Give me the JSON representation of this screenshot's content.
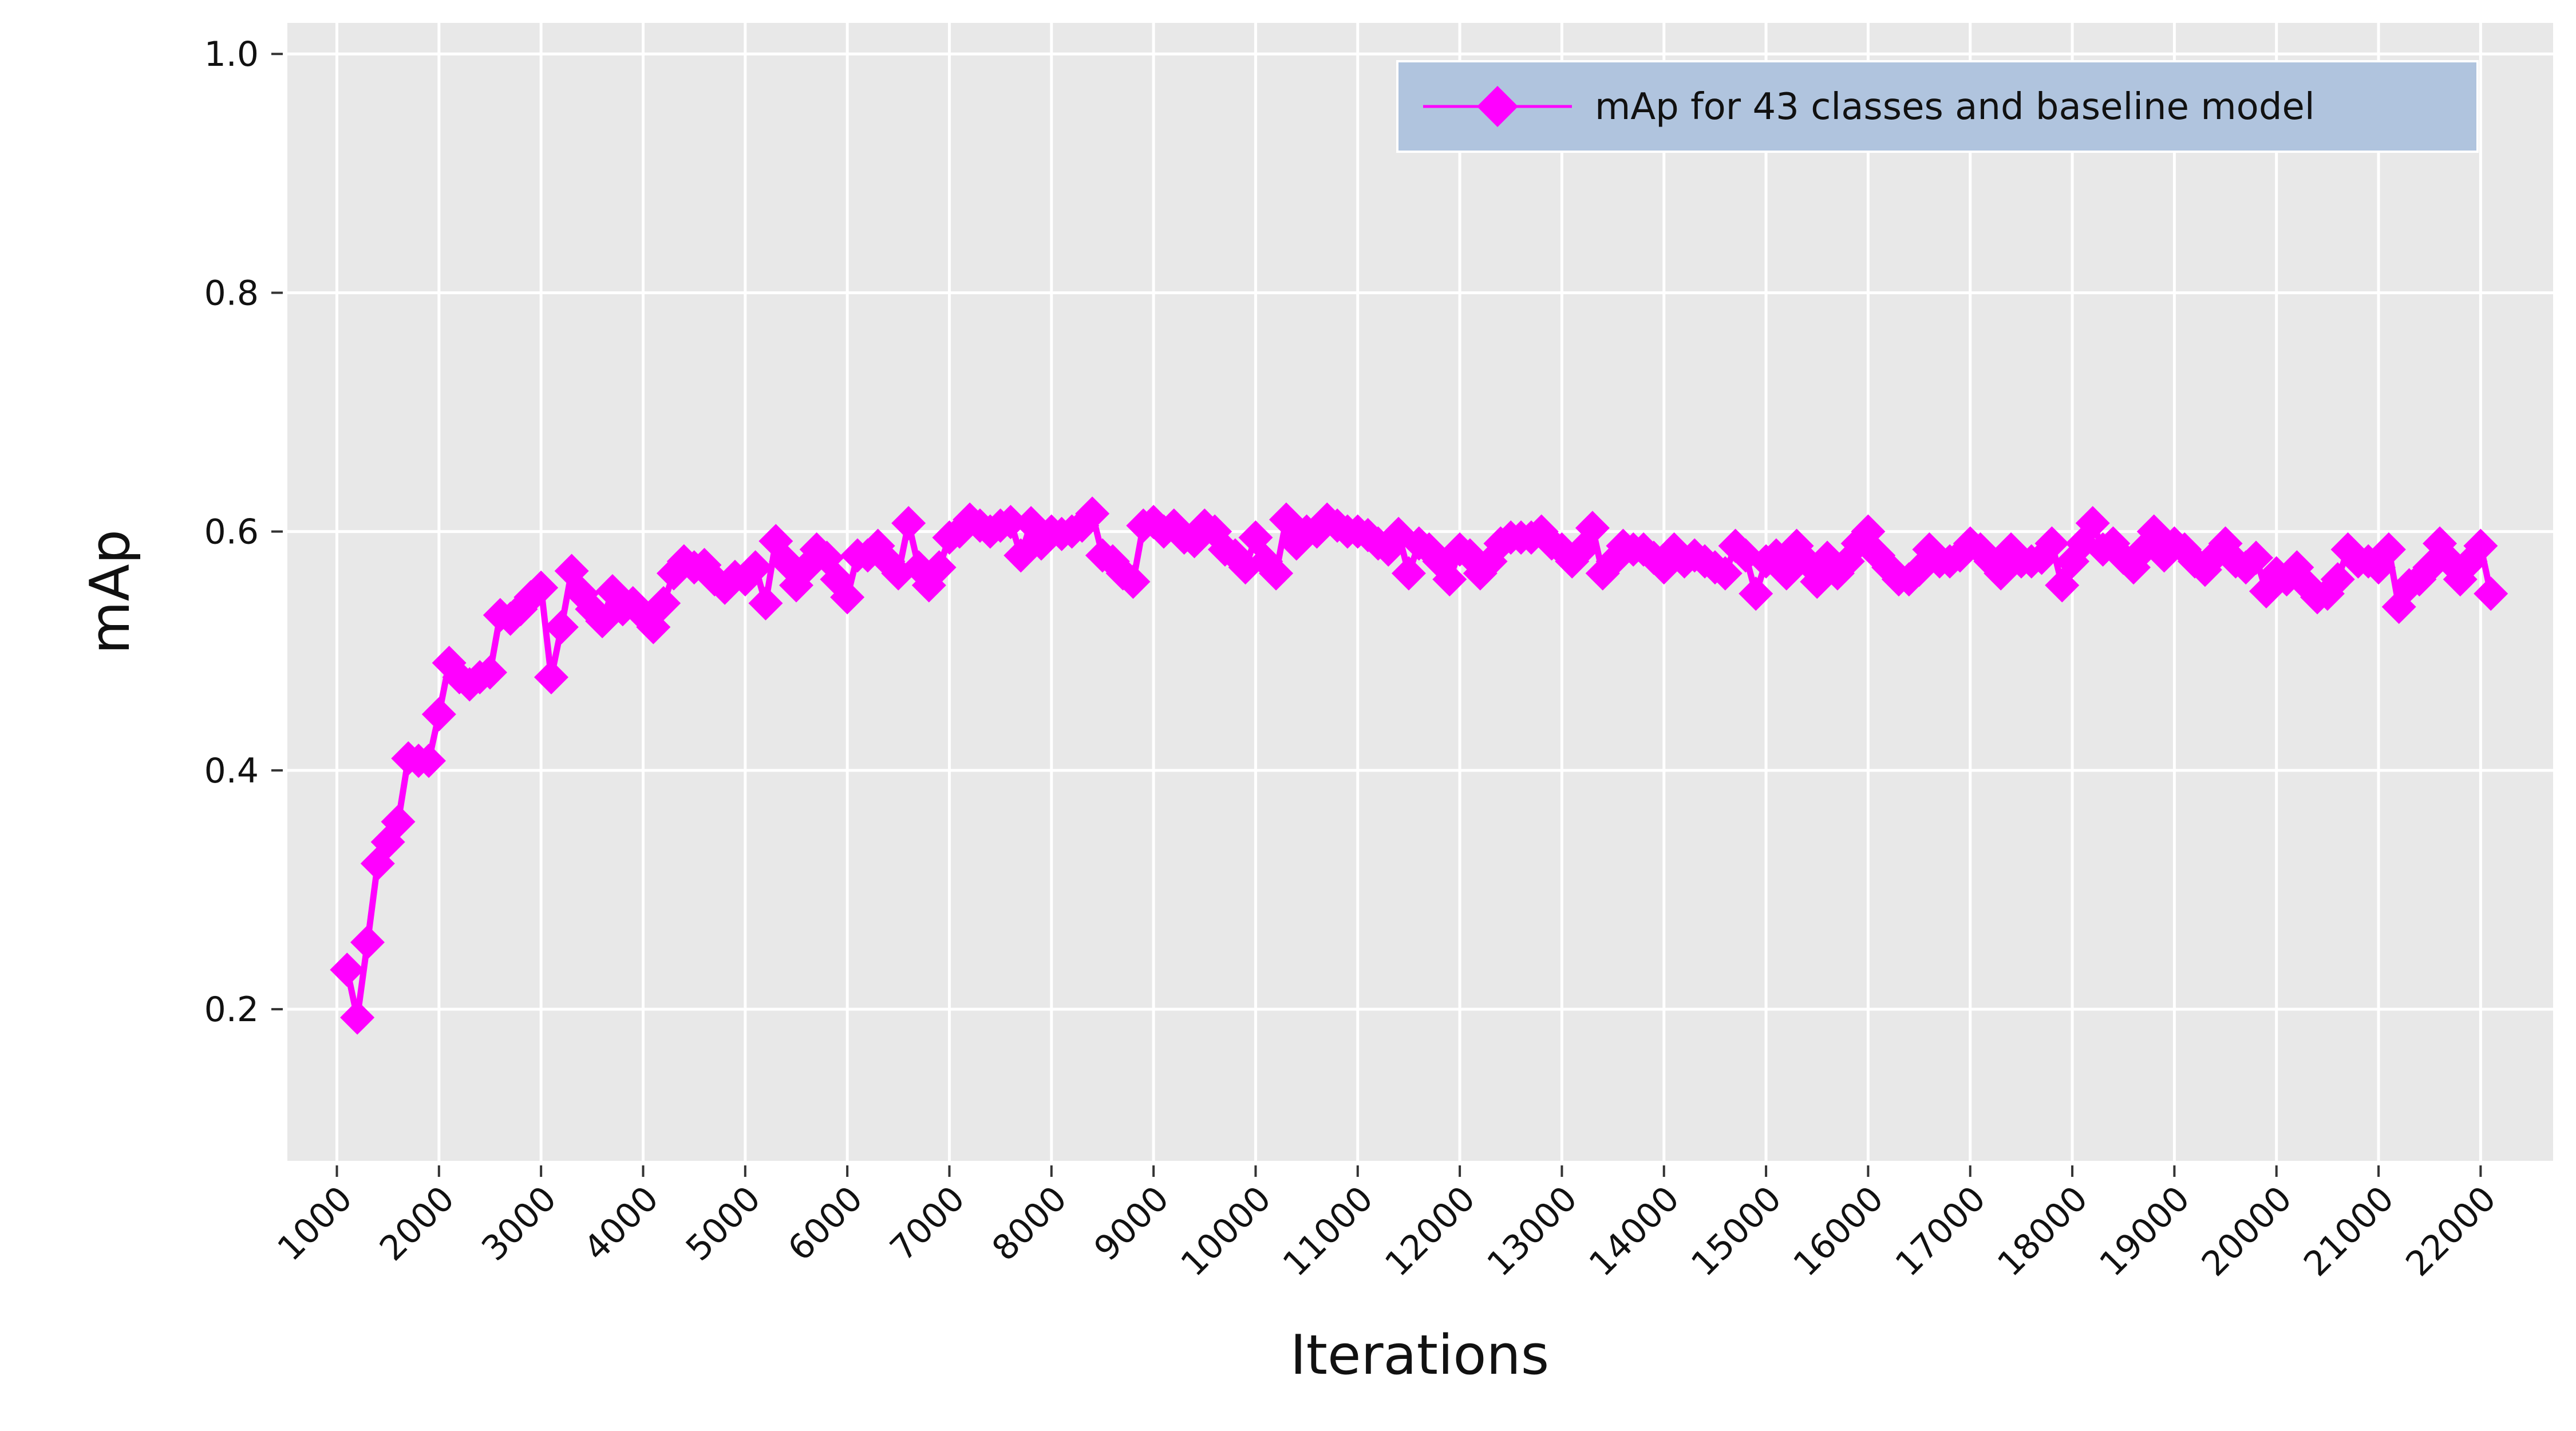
{
  "chart_data": {
    "type": "line",
    "xlabel": "Iterations",
    "ylabel": "mAp",
    "xlim": [
      515,
      22710
    ],
    "ylim": [
      0.073,
      1.026
    ],
    "xticks": [
      1000,
      2000,
      3000,
      4000,
      5000,
      6000,
      7000,
      8000,
      9000,
      10000,
      11000,
      12000,
      13000,
      14000,
      15000,
      16000,
      17000,
      18000,
      19000,
      20000,
      21000,
      22000
    ],
    "yticks": [
      0.2,
      0.4,
      0.6,
      0.8,
      {
        "value": 1.0,
        "label": "1.0"
      }
    ],
    "grid": true,
    "legend": "upper right",
    "x": [
      1100,
      1200,
      1300,
      1400,
      1500,
      1600,
      1700,
      1800,
      1900,
      2000,
      2100,
      2200,
      2300,
      2400,
      2500,
      2600,
      2700,
      2800,
      2900,
      3000,
      3100,
      3200,
      3300,
      3400,
      3500,
      3600,
      3700,
      3800,
      3900,
      4000,
      4100,
      4200,
      4300,
      4400,
      4500,
      4600,
      4700,
      4800,
      4900,
      5000,
      5100,
      5200,
      5300,
      5400,
      5500,
      5600,
      5700,
      5800,
      5900,
      6000,
      6100,
      6200,
      6300,
      6400,
      6500,
      6600,
      6700,
      6800,
      6900,
      7000,
      7100,
      7200,
      7300,
      7400,
      7500,
      7600,
      7700,
      7800,
      7900,
      8000,
      8100,
      8200,
      8300,
      8400,
      8500,
      8600,
      8700,
      8800,
      8900,
      9000,
      9100,
      9200,
      9300,
      9400,
      9500,
      9600,
      9700,
      9800,
      9900,
      10000,
      10100,
      10200,
      10300,
      10400,
      10500,
      10600,
      10700,
      10800,
      10900,
      11000,
      11100,
      11200,
      11300,
      11400,
      11500,
      11600,
      11700,
      11800,
      11900,
      12000,
      12100,
      12200,
      12300,
      12400,
      12500,
      12600,
      12700,
      12800,
      12900,
      13000,
      13100,
      13200,
      13300,
      13400,
      13500,
      13600,
      13700,
      13800,
      13900,
      14000,
      14100,
      14200,
      14300,
      14400,
      14500,
      14600,
      14700,
      14800,
      14900,
      15000,
      15100,
      15200,
      15300,
      15400,
      15500,
      15600,
      15700,
      15800,
      15900,
      16000,
      16100,
      16200,
      16300,
      16400,
      16500,
      16600,
      16700,
      16800,
      16900,
      17000,
      17100,
      17200,
      17300,
      17400,
      17500,
      17600,
      17700,
      17800,
      17900,
      18000,
      18100,
      18200,
      18300,
      18400,
      18500,
      18600,
      18700,
      18800,
      18900,
      19000,
      19100,
      19200,
      19300,
      19400,
      19500,
      19600,
      19700,
      19800,
      19900,
      20000,
      20100,
      20200,
      20300,
      20400,
      20500,
      20600,
      20700,
      20800,
      20900,
      21000,
      21100,
      21200,
      21300,
      21400,
      21500,
      21600,
      21700,
      21800,
      21900,
      22000,
      22100
    ],
    "series": [
      {
        "name": "mAp for 43 classes and baseline model",
        "color": "#ff00ff",
        "values": [
          0.233,
          0.193,
          0.256,
          0.322,
          0.34,
          0.357,
          0.41,
          0.408,
          0.408,
          0.447,
          0.49,
          0.478,
          0.472,
          0.478,
          0.482,
          0.53,
          0.527,
          0.535,
          0.545,
          0.553,
          0.478,
          0.52,
          0.567,
          0.548,
          0.535,
          0.525,
          0.55,
          0.535,
          0.54,
          0.53,
          0.52,
          0.54,
          0.565,
          0.575,
          0.57,
          0.572,
          0.56,
          0.553,
          0.562,
          0.56,
          0.57,
          0.54,
          0.592,
          0.575,
          0.555,
          0.57,
          0.585,
          0.578,
          0.56,
          0.545,
          0.58,
          0.58,
          0.588,
          0.575,
          0.565,
          0.607,
          0.57,
          0.555,
          0.57,
          0.595,
          0.6,
          0.61,
          0.605,
          0.6,
          0.605,
          0.608,
          0.58,
          0.607,
          0.59,
          0.6,
          0.598,
          0.6,
          0.605,
          0.615,
          0.58,
          0.575,
          0.565,
          0.558,
          0.605,
          0.608,
          0.6,
          0.605,
          0.595,
          0.592,
          0.605,
          0.6,
          0.585,
          0.58,
          0.57,
          0.595,
          0.575,
          0.565,
          0.61,
          0.59,
          0.6,
          0.6,
          0.61,
          0.605,
          0.6,
          0.6,
          0.597,
          0.59,
          0.585,
          0.598,
          0.565,
          0.59,
          0.585,
          0.575,
          0.56,
          0.585,
          0.58,
          0.565,
          0.575,
          0.59,
          0.595,
          0.595,
          0.595,
          0.6,
          0.59,
          0.585,
          0.575,
          0.585,
          0.603,
          0.565,
          0.575,
          0.588,
          0.585,
          0.585,
          0.578,
          0.57,
          0.585,
          0.575,
          0.58,
          0.575,
          0.57,
          0.565,
          0.588,
          0.58,
          0.548,
          0.575,
          0.58,
          0.565,
          0.588,
          0.575,
          0.558,
          0.578,
          0.565,
          0.575,
          0.59,
          0.6,
          0.58,
          0.57,
          0.56,
          0.56,
          0.568,
          0.585,
          0.575,
          0.575,
          0.58,
          0.59,
          0.585,
          0.575,
          0.565,
          0.585,
          0.575,
          0.575,
          0.578,
          0.59,
          0.555,
          0.575,
          0.59,
          0.607,
          0.585,
          0.59,
          0.578,
          0.57,
          0.585,
          0.6,
          0.58,
          0.59,
          0.585,
          0.575,
          0.568,
          0.58,
          0.59,
          0.575,
          0.57,
          0.578,
          0.55,
          0.565,
          0.56,
          0.57,
          0.555,
          0.545,
          0.548,
          0.56,
          0.585,
          0.575,
          0.575,
          0.57,
          0.585,
          0.537,
          0.555,
          0.56,
          0.57,
          0.59,
          0.575,
          0.56,
          0.575,
          0.588,
          0.548
        ]
      }
    ]
  }
}
